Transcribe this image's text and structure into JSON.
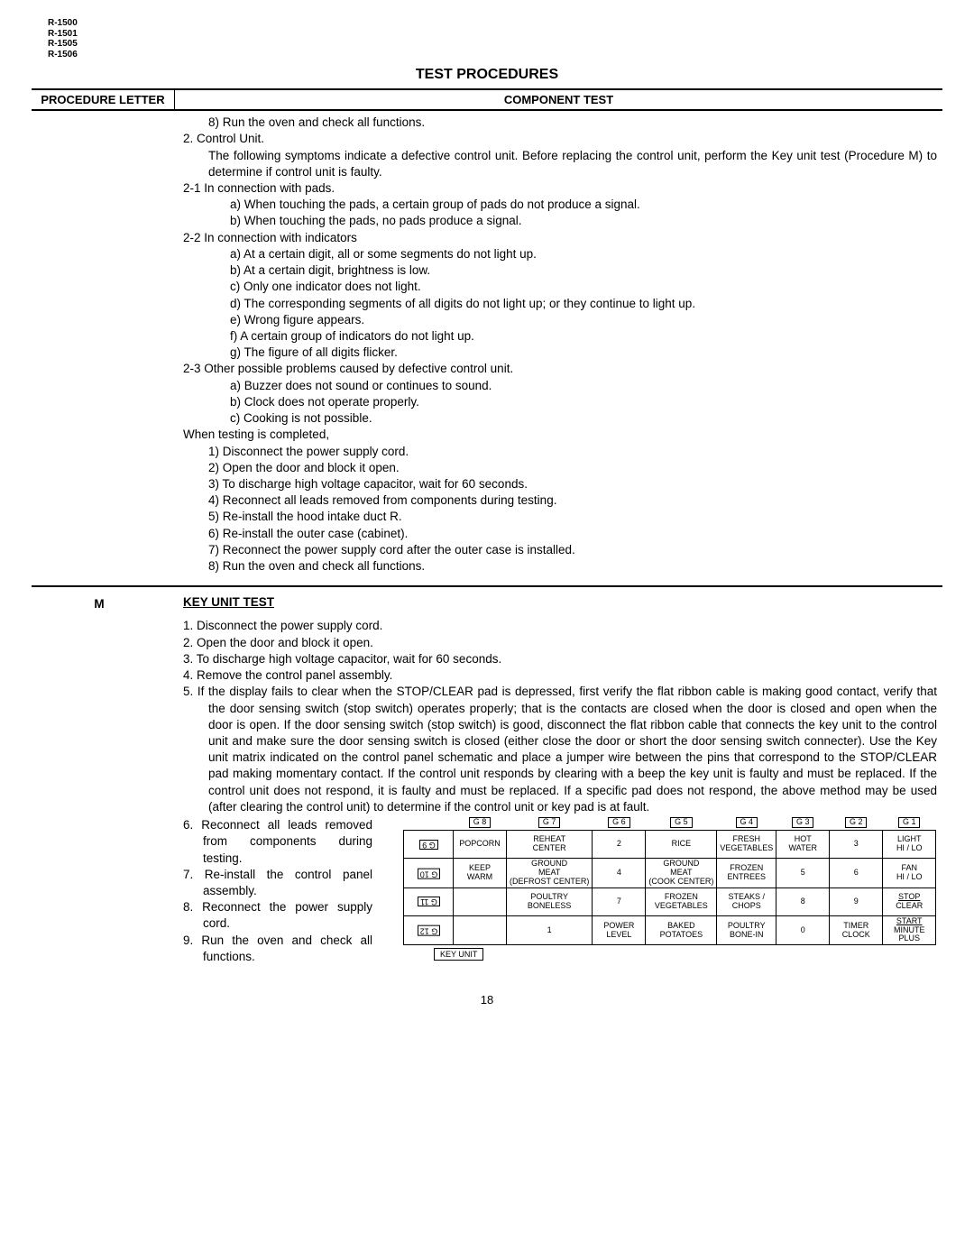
{
  "models": [
    "R-1500",
    "R-1501",
    "R-1505",
    "R-1506"
  ],
  "title": "TEST PROCEDURES",
  "header": {
    "proc": "PROCEDURE LETTER",
    "comp": "COMPONENT TEST"
  },
  "sectionA": {
    "lines": [
      {
        "cls": "ind2",
        "t": "8)  Run the oven and check all functions."
      },
      {
        "cls": "ind1",
        "t": "2.  Control Unit."
      },
      {
        "cls": "just",
        "style": "padding-left:28px;",
        "t": "The following symptoms  indicate a defective control unit.  Before replacing the control unit, perform the Key unit test (Procedure M) to determine if control unit is faulty."
      },
      {
        "cls": "ind1",
        "t": "2-1  In connection with pads."
      },
      {
        "cls": "ind3",
        "t": "a)  When touching the pads, a certain group of pads do not produce a signal."
      },
      {
        "cls": "ind3",
        "t": "b)  When touching the pads, no pads produce a signal."
      },
      {
        "cls": "ind1",
        "t": "2-2  In connection with indicators"
      },
      {
        "cls": "ind3",
        "t": "a)  At a certain digit, all or some segments do not light up."
      },
      {
        "cls": "ind3",
        "t": "b)  At a certain digit, brightness is low."
      },
      {
        "cls": "ind3",
        "t": "c)  Only one indicator does not light."
      },
      {
        "cls": "ind3",
        "t": "d)  The corresponding segments of all digits do not light up; or they continue to light up."
      },
      {
        "cls": "ind3",
        "t": "e)  Wrong figure appears."
      },
      {
        "cls": "ind3",
        "t": "f)  A certain group of indicators do not light up."
      },
      {
        "cls": "ind3",
        "t": "g)  The figure of all digits flicker."
      },
      {
        "cls": "ind1",
        "t": "2-3  Other possible problems caused by defective control unit."
      },
      {
        "cls": "ind3",
        "t": "a)  Buzzer does not sound or continues to sound."
      },
      {
        "cls": "ind3",
        "t": "b)  Clock does not operate properly."
      },
      {
        "cls": "ind3",
        "t": "c)  Cooking is not possible."
      },
      {
        "cls": "",
        "t": "When testing is completed,"
      },
      {
        "cls": "ind2",
        "t": "1)  Disconnect the power supply cord."
      },
      {
        "cls": "ind2",
        "t": "2)  Open the door and block it open."
      },
      {
        "cls": "ind2",
        "t": "3)  To discharge high voltage capacitor, wait for 60 seconds."
      },
      {
        "cls": "ind2",
        "t": "4)  Reconnect all leads removed from components during testing."
      },
      {
        "cls": "ind2",
        "t": "5)  Re-install the hood intake duct R."
      },
      {
        "cls": "ind2",
        "t": "6)  Re-install the outer case (cabinet)."
      },
      {
        "cls": "ind2",
        "t": "7)  Reconnect the power supply cord after the outer case is installed."
      },
      {
        "cls": "ind2",
        "t": "8)  Run the oven and check all functions."
      }
    ]
  },
  "sectionM": {
    "letter": "M",
    "heading": "KEY UNIT TEST",
    "steps": [
      "1.  Disconnect the power supply cord.",
      "2.  Open the door and block it open.",
      "3.  To discharge high voltage capacitor, wait for 60 seconds.",
      "4.  Remove the control panel assembly."
    ],
    "step5": "5.  If the display fails to clear when the STOP/CLEAR pad is depressed, first verify the flat ribbon cable is making good contact, verify that the door sensing switch (stop switch) operates properly; that is the contacts are closed when the door is closed and open when the door is open. If the door sensing switch (stop switch) is good, disconnect the flat ribbon cable that connects the key unit to the control unit and make sure the door sensing switch is closed (either close the door or short the door sensing switch connecter). Use the Key unit matrix indicated on the control panel schematic and place a jumper wire between the pins that correspond to the STOP/CLEAR pad making momentary contact. If the control unit responds by clearing with a beep the key unit is faulty and must be replaced. If the control unit does not respond, it is faulty and must be replaced. If a specific pad does not respond, the above method may be used (after clearing the control unit) to determine if the control unit or key pad is at fault.",
    "leftSteps": [
      "6. Reconnect all leads removed from components during testing.",
      "7. Re-install the control panel assembly.",
      "8. Reconnect the power supply cord.",
      "9. Run the oven and check all functions."
    ]
  },
  "matrix": {
    "gcols": [
      "G 8",
      "G 7",
      "G 6",
      "G 5",
      "G 4",
      "G 3",
      "G 2",
      "G 1"
    ],
    "grows": [
      "G 9",
      "G 10",
      "G 11",
      "G 12"
    ],
    "rows": [
      [
        "POPCORN",
        "REHEAT\nCENTER",
        "2",
        "RICE",
        "FRESH\nVEGETABLES",
        "HOT\nWATER",
        "3",
        "LIGHT\nHI / LO"
      ],
      [
        "KEEP\nWARM",
        "GROUND\nMEAT\n(DEFROST CENTER)",
        "4",
        "GROUND\nMEAT\n(COOK CENTER)",
        "FROZEN\nENTREES",
        "5",
        "6",
        "FAN\nHI / LO"
      ],
      [
        "",
        "POULTRY\nBONELESS",
        "7",
        "FROZEN\nVEGETABLES",
        "STEAKS /\nCHOPS",
        "8",
        "9",
        "STOP\nCLEAR"
      ],
      [
        "",
        "1",
        "POWER\nLEVEL",
        "BAKED\nPOTATOES",
        "POULTRY\nBONE-IN",
        "0",
        "TIMER\nCLOCK",
        "START\nMINUTE\nPLUS"
      ]
    ],
    "label": "KEY UNIT"
  },
  "pageNum": "18"
}
